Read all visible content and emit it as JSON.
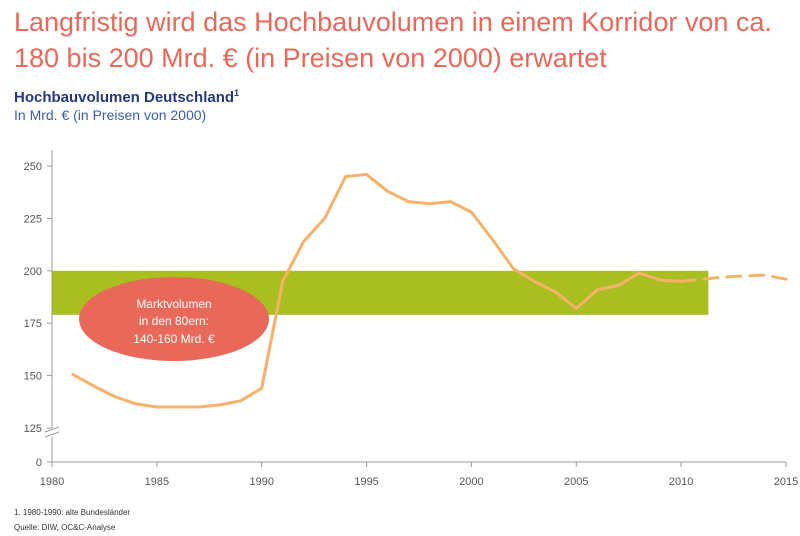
{
  "title": "Langfristig wird das Hochbauvolumen in einem Korridor von ca. 180 bis 200 Mrd. € (in Preisen von 2000) erwartet",
  "subtitle": "Hochbauvolumen Deutschland",
  "subtitle_sup": "1",
  "unit": "In Mrd. € (in Preisen von 2000)",
  "annotation": [
    "Marktvolumen",
    "in den 80ern:",
    "140-160 Mrd. €"
  ],
  "footnote": "1.    1980-1990: alte Bundesländer",
  "source": "Quelle: DIW, OC&C-Analyse",
  "colors": {
    "title": "#e8695a",
    "line": "#f7b26a",
    "band": "#a9bf1f",
    "ellipse": "#e8695a"
  },
  "chart_data": {
    "type": "line",
    "xlim": [
      1980,
      2015
    ],
    "ylim": [
      0,
      260
    ],
    "y_axis_break": [
      0,
      125
    ],
    "x_ticks": [
      "1980",
      "1985",
      "1990",
      "1995",
      "2000",
      "2005",
      "2010",
      "2015"
    ],
    "y_ticks": [
      "0",
      "125",
      "150",
      "175",
      "200",
      "225",
      "250"
    ],
    "band": {
      "from": 179,
      "to": 200,
      "x_from": 1980,
      "x_to": 2011.3,
      "label": "corridor"
    },
    "series": [
      {
        "style": "solid",
        "x": [
          1981,
          1982,
          1983,
          1984,
          1985,
          1986,
          1987,
          1988,
          1989,
          1990,
          1991,
          1992,
          1993,
          1994,
          1995,
          1996,
          1997,
          1998,
          1999,
          2000,
          2001,
          2002,
          2003,
          2004,
          2005,
          2006,
          2007,
          2008,
          2009,
          2010
        ],
        "y": [
          150.5,
          145,
          140,
          136.5,
          135,
          135,
          135,
          136,
          138,
          144,
          195,
          214,
          225,
          245,
          246,
          238,
          233,
          232,
          233,
          228,
          215,
          201,
          195,
          190,
          182,
          191,
          193,
          199,
          195.5,
          195
        ]
      },
      {
        "style": "dashed",
        "x": [
          2010,
          2011,
          2012,
          2013,
          2014,
          2015
        ],
        "y": [
          195,
          196,
          197,
          197.5,
          198,
          196
        ]
      }
    ]
  }
}
